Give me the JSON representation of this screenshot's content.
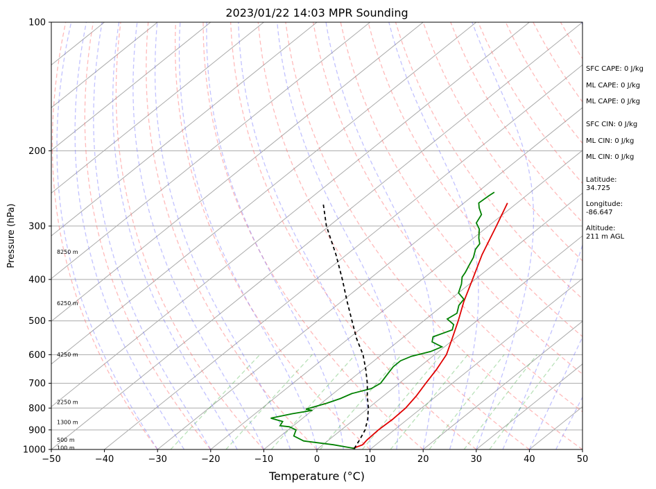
{
  "chart_data": {
    "type": "line",
    "title": "2023/01/22 14:03 MPR Sounding",
    "xlabel": "Temperature (°C)",
    "ylabel": "Pressure (hPa)",
    "xlim": [
      -50,
      50
    ],
    "ylim": [
      1000,
      100
    ],
    "y_scale": "log",
    "grid": true,
    "x_ticks": [
      "−50",
      "−40",
      "−30",
      "−20",
      "−10",
      "0",
      "10",
      "20",
      "30",
      "40",
      "50"
    ],
    "x_tick_values": [
      -50,
      -40,
      -30,
      -20,
      -10,
      0,
      10,
      20,
      30,
      40,
      50
    ],
    "y_ticks": [
      "1000",
      "900",
      "800",
      "700",
      "600",
      "500",
      "400",
      "300",
      "200",
      "100"
    ],
    "y_tick_values": [
      1000,
      900,
      800,
      700,
      600,
      500,
      400,
      300,
      200,
      100
    ],
    "height_labels": [
      {
        "text": "100 m",
        "p": 993
      },
      {
        "text": "500 m",
        "p": 950
      },
      {
        "text": "1300 m",
        "p": 865
      },
      {
        "text": "2250 m",
        "p": 775
      },
      {
        "text": "4250 m",
        "p": 600
      },
      {
        "text": "6250 m",
        "p": 455
      },
      {
        "text": "8250 m",
        "p": 345
      }
    ],
    "series": [
      {
        "color": "#e00000",
        "points": [
          [
            6.5,
            995
          ],
          [
            7.5,
            975
          ],
          [
            7.2,
            950
          ],
          [
            7.0,
            900
          ],
          [
            7.2,
            850
          ],
          [
            7.0,
            800
          ],
          [
            6.2,
            750
          ],
          [
            5.0,
            700
          ],
          [
            3.8,
            650
          ],
          [
            2.2,
            600
          ],
          [
            -0.5,
            550
          ],
          [
            -3.5,
            500
          ],
          [
            -7.0,
            450
          ],
          [
            -10.5,
            400
          ],
          [
            -14.5,
            350
          ],
          [
            -18.5,
            300
          ],
          [
            -21.8,
            265
          ]
        ]
      },
      {
        "color": "#008000",
        "points": [
          [
            7.0,
            995
          ],
          [
            2.0,
            975
          ],
          [
            -4.5,
            955
          ],
          [
            -7.5,
            930
          ],
          [
            -8.5,
            900
          ],
          [
            -10.5,
            885
          ],
          [
            -12.5,
            880
          ],
          [
            -13.0,
            860
          ],
          [
            -16.0,
            845
          ],
          [
            -13.0,
            825
          ],
          [
            -10.0,
            810
          ],
          [
            -11.5,
            805
          ],
          [
            -10.0,
            790
          ],
          [
            -9.0,
            780
          ],
          [
            -7.5,
            760
          ],
          [
            -6.5,
            740
          ],
          [
            -4.0,
            720
          ],
          [
            -3.5,
            700
          ],
          [
            -4.0,
            680
          ],
          [
            -4.5,
            660
          ],
          [
            -5.0,
            640
          ],
          [
            -5.0,
            620
          ],
          [
            -4.0,
            605
          ],
          [
            -1.5,
            590
          ],
          [
            -0.5,
            575
          ],
          [
            -3.5,
            560
          ],
          [
            -4.5,
            545
          ],
          [
            -2.5,
            525
          ],
          [
            -3.5,
            510
          ],
          [
            -6.0,
            495
          ],
          [
            -5.5,
            480
          ],
          [
            -7.0,
            460
          ],
          [
            -7.5,
            445
          ],
          [
            -10.0,
            430
          ],
          [
            -11.5,
            410
          ],
          [
            -13.0,
            395
          ],
          [
            -13.5,
            385
          ],
          [
            -14.5,
            370
          ],
          [
            -15.5,
            355
          ],
          [
            -17.0,
            340
          ],
          [
            -17.5,
            330
          ],
          [
            -19.0,
            320
          ],
          [
            -21.0,
            305
          ],
          [
            -23.0,
            295
          ],
          [
            -24.0,
            282
          ],
          [
            -26.0,
            272
          ],
          [
            -27.2,
            265
          ],
          [
            -27.0,
            255
          ],
          [
            -26.8,
            250
          ]
        ]
      },
      {
        "color": "#000000",
        "dashed": true,
        "points": [
          [
            6.8,
            995
          ],
          [
            5.8,
            950
          ],
          [
            4.5,
            900
          ],
          [
            2.5,
            850
          ],
          [
            0.0,
            800
          ],
          [
            -3.0,
            750
          ],
          [
            -6.0,
            700
          ],
          [
            -9.5,
            650
          ],
          [
            -13.5,
            600
          ],
          [
            -18.5,
            550
          ],
          [
            -23.5,
            500
          ],
          [
            -29.0,
            450
          ],
          [
            -35.0,
            400
          ],
          [
            -42.0,
            350
          ],
          [
            -50.5,
            300
          ],
          [
            -56.5,
            265
          ]
        ]
      }
    ]
  },
  "side_panel": {
    "sfc_cape": "SFC CAPE: 0 J/kg",
    "ml_cape": "ML CAPE: 0 J/kg",
    "ml_cape_2": "ML CAPE: 0 J/kg",
    "sfc_cin": "SFC CIN: 0 J/kg",
    "ml_cin": "ML CIN: 0 J/kg",
    "ml_cin_2": "ML CIN: 0 J/kg",
    "latitude": "Latitude:\n34.725",
    "longitude": "Longitude:\n-86.647",
    "altitude": "Altitude:\n211 m AGL"
  }
}
